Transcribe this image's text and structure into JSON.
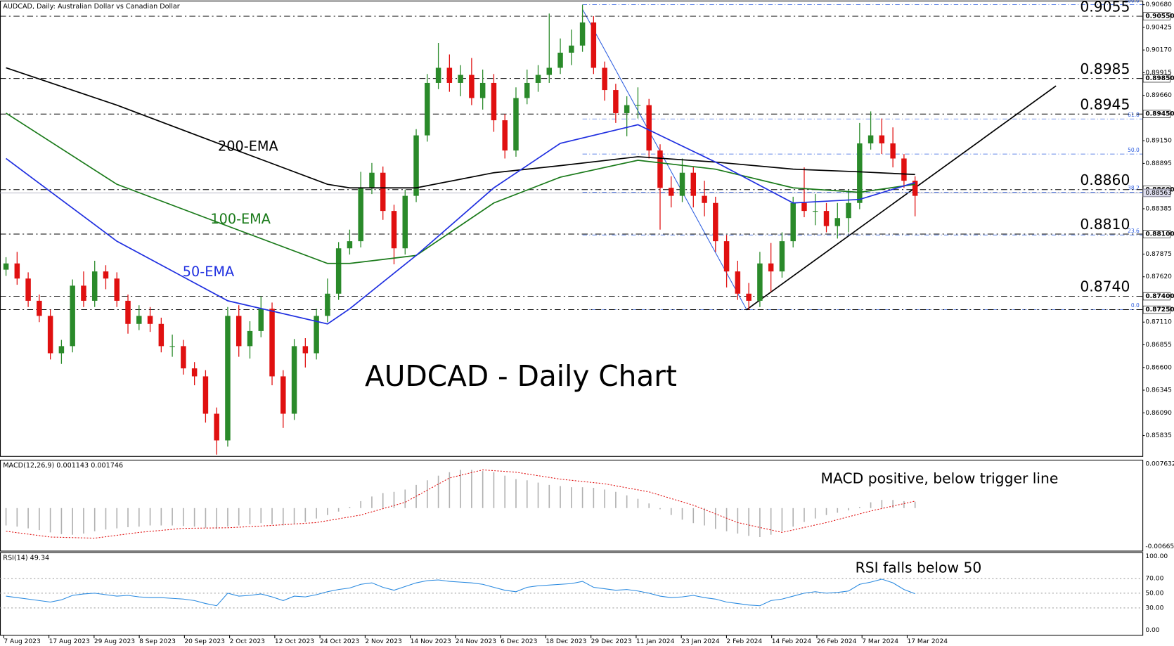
{
  "chart_data": {
    "type": "candlestick",
    "header": "AUDCAD, Daily:  Australian Dollar vs Canadian Dollar",
    "title": "AUDCAD - Daily Chart",
    "colors": {
      "up": "#2a8a2a",
      "down": "#e01010"
    },
    "open": [
      0.877,
      0.8777,
      0.876,
      0.8735,
      0.8718,
      0.8676,
      0.8684,
      0.8752,
      0.8735,
      0.8768,
      0.876,
      0.8735,
      0.8709,
      0.8718,
      0.8709,
      0.8684,
      0.8684,
      0.8659,
      0.865,
      0.8608,
      0.8578,
      0.8718,
      0.8684,
      0.8701,
      0.8726,
      0.865,
      0.8608,
      0.8684,
      0.8676,
      0.8718,
      0.8743,
      0.8794,
      0.8802,
      0.8862,
      0.8879,
      0.8836,
      0.8794,
      0.8853,
      0.8921,
      0.898,
      0.8997,
      0.898,
      0.8989,
      0.8963,
      0.898,
      0.8938,
      0.8904,
      0.8963,
      0.898,
      0.8989,
      0.8997,
      0.9014,
      0.9022,
      0.9048,
      0.8997,
      0.8972,
      0.8946,
      0.8955,
      0.8955,
      0.8904,
      0.8862,
      0.8853,
      0.8879,
      0.8853,
      0.8845,
      0.8802,
      0.8768,
      0.8743,
      0.8735,
      0.8777,
      0.8768,
      0.8802,
      0.8845,
      0.8836,
      0.8836,
      0.8819,
      0.8828,
      0.8845,
      0.8912,
      0.8921,
      0.8912,
      0.8895,
      0.887
    ],
    "high": [
      0.8784,
      0.879,
      0.8767,
      0.8742,
      0.8725,
      0.8691,
      0.8759,
      0.8768,
      0.878,
      0.8775,
      0.8767,
      0.8742,
      0.873,
      0.8728,
      0.8716,
      0.8697,
      0.8691,
      0.8666,
      0.8657,
      0.8615,
      0.8728,
      0.873,
      0.8712,
      0.874,
      0.8733,
      0.8657,
      0.8692,
      0.8693,
      0.8726,
      0.876,
      0.8801,
      0.8815,
      0.888,
      0.889,
      0.8886,
      0.8843,
      0.886,
      0.8928,
      0.899,
      0.9025,
      0.9012,
      0.9,
      0.9008,
      0.8995,
      0.899,
      0.8945,
      0.8975,
      0.8995,
      0.9,
      0.9058,
      0.903,
      0.904,
      0.9068,
      0.9055,
      0.9004,
      0.8979,
      0.8965,
      0.8975,
      0.8962,
      0.8911,
      0.8875,
      0.8895,
      0.8886,
      0.887,
      0.8852,
      0.8809,
      0.878,
      0.8755,
      0.879,
      0.88,
      0.8812,
      0.8852,
      0.8885,
      0.8855,
      0.8845,
      0.8845,
      0.886,
      0.8935,
      0.8948,
      0.894,
      0.893,
      0.89,
      0.8875
    ],
    "low": [
      0.8763,
      0.8753,
      0.8728,
      0.8711,
      0.8669,
      0.8664,
      0.8677,
      0.8728,
      0.8728,
      0.8748,
      0.8728,
      0.8698,
      0.8702,
      0.87,
      0.8677,
      0.8672,
      0.8652,
      0.864,
      0.8598,
      0.8562,
      0.8571,
      0.8672,
      0.867,
      0.8694,
      0.864,
      0.8592,
      0.8601,
      0.866,
      0.8669,
      0.8711,
      0.8736,
      0.8787,
      0.8795,
      0.8855,
      0.8826,
      0.8776,
      0.8787,
      0.8846,
      0.8914,
      0.8973,
      0.897,
      0.8965,
      0.8955,
      0.895,
      0.8925,
      0.8895,
      0.8897,
      0.8956,
      0.897,
      0.898,
      0.899,
      0.9,
      0.9015,
      0.899,
      0.896,
      0.8935,
      0.892,
      0.894,
      0.8895,
      0.8815,
      0.884,
      0.8846,
      0.884,
      0.883,
      0.879,
      0.875,
      0.8736,
      0.8725,
      0.8728,
      0.8745,
      0.8761,
      0.8795,
      0.8829,
      0.882,
      0.8812,
      0.8805,
      0.8812,
      0.8838,
      0.8905,
      0.89,
      0.8885,
      0.8862,
      0.883
    ],
    "close": [
      0.8777,
      0.876,
      0.8735,
      0.8718,
      0.8676,
      0.8684,
      0.8752,
      0.8735,
      0.8768,
      0.876,
      0.8735,
      0.8709,
      0.8718,
      0.8709,
      0.8684,
      0.8684,
      0.8659,
      0.865,
      0.8608,
      0.8578,
      0.8718,
      0.8684,
      0.8701,
      0.8726,
      0.865,
      0.8608,
      0.8684,
      0.8676,
      0.8718,
      0.8743,
      0.8794,
      0.8802,
      0.8862,
      0.8879,
      0.8836,
      0.8794,
      0.8853,
      0.8921,
      0.898,
      0.8997,
      0.898,
      0.8989,
      0.8963,
      0.898,
      0.8938,
      0.8904,
      0.8963,
      0.898,
      0.8989,
      0.8997,
      0.9014,
      0.9022,
      0.9048,
      0.8997,
      0.8972,
      0.8946,
      0.8955,
      0.8955,
      0.8904,
      0.8862,
      0.8853,
      0.8879,
      0.8853,
      0.8845,
      0.8802,
      0.8768,
      0.8743,
      0.8735,
      0.8777,
      0.8768,
      0.8802,
      0.8845,
      0.8836,
      0.8836,
      0.8819,
      0.8828,
      0.8845,
      0.8912,
      0.8921,
      0.8912,
      0.8895,
      0.887,
      0.8853
    ],
    "ema_x": [
      0,
      10,
      20,
      29,
      31,
      37,
      44,
      50,
      57,
      64,
      71,
      77,
      82
    ],
    "series": [
      {
        "name": "200-EMA",
        "color": "#000000",
        "values": [
          0.8997,
          0.8955,
          0.8908,
          0.8866,
          0.8862,
          0.8862,
          0.8879,
          0.8887,
          0.8897,
          0.8891,
          0.8883,
          0.888,
          0.8877
        ]
      },
      {
        "name": "100-EMA",
        "color": "#1a7a1a",
        "values": [
          0.8946,
          0.8866,
          0.8819,
          0.8777,
          0.8777,
          0.8786,
          0.8845,
          0.8874,
          0.8893,
          0.8883,
          0.8862,
          0.8857,
          0.8866
        ]
      },
      {
        "name": "50-EMA",
        "color": "#1f2fe0",
        "values": [
          0.8895,
          0.8802,
          0.8735,
          0.8709,
          0.8726,
          0.8786,
          0.8862,
          0.8912,
          0.8933,
          0.8891,
          0.8845,
          0.8849,
          0.8868
        ]
      }
    ],
    "ylim": [
      0.856,
      0.9073
    ],
    "yticks": [
      {
        "value": 0.9068,
        "label": "0.90680"
      },
      {
        "value": 0.90425,
        "label": "0.90425"
      },
      {
        "value": 0.9017,
        "label": "0.90170"
      },
      {
        "value": 0.89915,
        "label": "0.89915"
      },
      {
        "value": 0.8966,
        "label": "0.89660"
      },
      {
        "value": 0.8915,
        "label": "0.89150"
      },
      {
        "value": 0.88895,
        "label": "0.88895"
      },
      {
        "value": 0.88385,
        "label": "0.88385"
      },
      {
        "value": 0.87875,
        "label": "0.87875"
      },
      {
        "value": 0.8762,
        "label": "0.87620"
      },
      {
        "value": 0.8711,
        "label": "0.87110"
      },
      {
        "value": 0.86855,
        "label": "0.86855"
      },
      {
        "value": 0.866,
        "label": "0.86600"
      },
      {
        "value": 0.86345,
        "label": "0.86345"
      },
      {
        "value": 0.8609,
        "label": "0.86090"
      },
      {
        "value": 0.85835,
        "label": "0.85835"
      }
    ],
    "levels": [
      {
        "value": 0.9055,
        "label": "0.9055",
        "axis_label": "0.90550"
      },
      {
        "value": 0.8985,
        "label": "0.8985",
        "axis_label": "0.89850"
      },
      {
        "value": 0.8945,
        "label": "0.8945",
        "axis_label": "0.89450"
      },
      {
        "value": 0.886,
        "label": "0.8860",
        "axis_label": "0.88600"
      },
      {
        "value": 0.881,
        "label": "0.8810",
        "axis_label": "0.88100"
      },
      {
        "value": 0.874,
        "label": "0.8740",
        "axis_label": "0.87400"
      },
      {
        "value": 0.8725,
        "axis_label": "0.87250"
      }
    ],
    "last_price": {
      "value": 0.88563,
      "label": "0.88563"
    },
    "fib_levels": [
      {
        "value": 0.9068,
        "label": "100.0"
      },
      {
        "value": 0.89395,
        "label": "61.8"
      },
      {
        "value": 0.89,
        "label": "50.0"
      },
      {
        "value": 0.8857,
        "label": "38.2"
      },
      {
        "value": 0.8809,
        "label": "23.6"
      },
      {
        "value": 0.8725,
        "label": "0.0"
      }
    ],
    "date_labels": [
      "7 Aug 2023",
      "17 Aug 2023",
      "29 Aug 2023",
      "8 Sep 2023",
      "20 Sep 2023",
      "2 Oct 2023",
      "12 Oct 2023",
      "24 Oct 2023",
      "2 Nov 2023",
      "14 Nov 2023",
      "24 Nov 2023",
      "6 Dec 2023",
      "18 Dec 2023",
      "29 Dec 2023",
      "11 Jan 2024",
      "23 Jan 2024",
      "2 Feb 2024",
      "14 Feb 2024",
      "26 Feb 2024",
      "7 Mar 2024",
      "17 Mar 2024"
    ],
    "macd": {
      "label": "MACD(12,26,9) 0.001143 0.001746",
      "annotation": "MACD positive, below trigger line",
      "histogram": [
        -0.003,
        -0.0032,
        -0.0035,
        -0.0038,
        -0.0042,
        -0.0045,
        -0.0046,
        -0.0044,
        -0.004,
        -0.0037,
        -0.0035,
        -0.0033,
        -0.0032,
        -0.003,
        -0.003,
        -0.003,
        -0.0031,
        -0.0032,
        -0.0034,
        -0.0036,
        -0.0032,
        -0.003,
        -0.0028,
        -0.0026,
        -0.0028,
        -0.003,
        -0.0028,
        -0.0024,
        -0.0018,
        -0.0012,
        -0.0006,
        0.0002,
        0.0012,
        0.002,
        0.0026,
        0.0028,
        0.0032,
        0.004,
        0.0048,
        0.0056,
        0.0062,
        0.0066,
        0.0066,
        0.0064,
        0.0062,
        0.0056,
        0.005,
        0.0048,
        0.0044,
        0.004,
        0.0038,
        0.0036,
        0.0036,
        0.0035,
        0.0032,
        0.0028,
        0.0022,
        0.0016,
        0.0008,
        -0.0002,
        -0.0012,
        -0.002,
        -0.0026,
        -0.003,
        -0.0036,
        -0.004,
        -0.0044,
        -0.0048,
        -0.005,
        -0.0046,
        -0.004,
        -0.0032,
        -0.0024,
        -0.0018,
        -0.0012,
        -0.0008,
        -0.0004,
        0.0002,
        0.001,
        0.0014,
        0.0014,
        0.0012,
        0.0011
      ],
      "signal_x": [
        0,
        4,
        8,
        12,
        16,
        20,
        24,
        28,
        32,
        36,
        40,
        43,
        46,
        50,
        54,
        58,
        62,
        66,
        70,
        74,
        78,
        82
      ],
      "signal": [
        -0.004,
        -0.005,
        -0.0052,
        -0.0042,
        -0.0035,
        -0.0034,
        -0.003,
        -0.0025,
        -0.0012,
        0.001,
        0.0052,
        0.0066,
        0.0062,
        0.005,
        0.0042,
        0.0028,
        0.0005,
        -0.0025,
        -0.0042,
        -0.0025,
        -0.0005,
        0.0012
      ],
      "ylim": [
        -0.00743,
        0.00828
      ],
      "yticks": [
        {
          "value": 0.007632,
          "label": "0.007632"
        },
        {
          "value": -0.006652,
          "label": "-0.006652"
        }
      ]
    },
    "rsi": {
      "label": "RSI(14) 49.34",
      "annotation": "RSI falls below 50",
      "values": [
        46,
        44,
        42,
        40,
        38,
        41,
        47,
        49,
        50,
        48,
        46,
        47,
        45,
        44,
        44,
        43,
        42,
        40,
        36,
        33,
        50,
        46,
        47,
        49,
        45,
        40,
        46,
        45,
        48,
        52,
        55,
        57,
        62,
        64,
        58,
        54,
        59,
        64,
        67,
        68,
        66,
        65,
        64,
        62,
        58,
        54,
        52,
        58,
        60,
        61,
        62,
        63,
        66,
        58,
        56,
        54,
        55,
        53,
        50,
        46,
        44,
        45,
        47,
        44,
        42,
        38,
        36,
        34,
        33,
        40,
        42,
        46,
        50,
        52,
        50,
        51,
        53,
        62,
        65,
        69,
        64,
        55,
        49.34
      ],
      "ylim": [
        -7,
        105
      ],
      "yticks": [
        {
          "value": 100,
          "label": "100.00"
        },
        {
          "value": 70,
          "label": "70.00"
        },
        {
          "value": 50,
          "label": "50.00"
        },
        {
          "value": 30,
          "label": "30.00"
        },
        {
          "value": 0,
          "label": "0.00"
        }
      ],
      "levels": [
        70,
        50,
        30
      ]
    }
  }
}
